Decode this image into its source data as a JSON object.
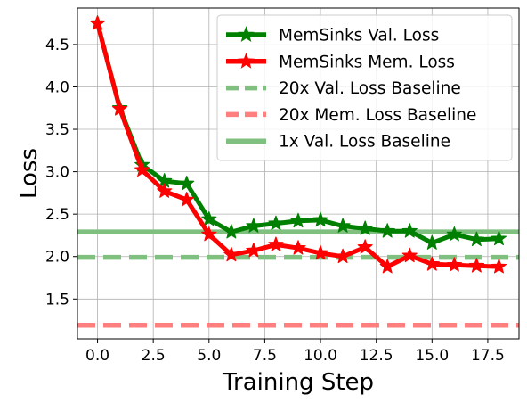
{
  "chart_data": {
    "type": "line",
    "xlabel": "Training Step",
    "ylabel": "Loss",
    "xlim": [
      -0.9,
      18.9
    ],
    "ylim": [
      1.03,
      4.93
    ],
    "x_ticks": [
      0.0,
      2.5,
      5.0,
      7.5,
      10.0,
      12.5,
      15.0,
      17.5
    ],
    "x_tick_labels": [
      "0.0",
      "2.5",
      "5.0",
      "7.5",
      "10.0",
      "12.5",
      "15.0",
      "17.5"
    ],
    "y_ticks": [
      1.5,
      2.0,
      2.5,
      3.0,
      3.5,
      4.0,
      4.5
    ],
    "y_tick_labels": [
      "1.5",
      "2.0",
      "2.5",
      "3.0",
      "3.5",
      "4.0",
      "4.5"
    ],
    "grid": true,
    "legend_position": "top-right",
    "x": [
      0,
      1,
      2,
      3,
      4,
      5,
      6,
      7,
      8,
      9,
      10,
      11,
      12,
      13,
      14,
      15,
      16,
      17,
      18
    ],
    "series": [
      {
        "name": "MemSinks Val. Loss",
        "color": "#008000",
        "marker": "star",
        "values": [
          4.75,
          3.75,
          3.08,
          2.89,
          2.86,
          2.44,
          2.29,
          2.36,
          2.39,
          2.42,
          2.43,
          2.36,
          2.33,
          2.3,
          2.3,
          2.16,
          2.26,
          2.2,
          2.21
        ]
      },
      {
        "name": "MemSinks Mem. Loss",
        "color": "#ff0000",
        "marker": "star",
        "values": [
          4.75,
          3.74,
          3.02,
          2.77,
          2.67,
          2.26,
          2.02,
          2.07,
          2.14,
          2.1,
          2.04,
          2.0,
          2.11,
          1.88,
          2.01,
          1.91,
          1.9,
          1.89,
          1.88
        ]
      }
    ],
    "baselines": [
      {
        "name": "20x Val. Loss Baseline",
        "value": 1.99,
        "color": "#7fbf7f",
        "style": "dashed"
      },
      {
        "name": "20x Mem. Loss Baseline",
        "value": 1.19,
        "color": "#ff7f7f",
        "style": "dashed"
      },
      {
        "name": "1x Val. Loss Baseline",
        "value": 2.29,
        "color": "#7fbf7f",
        "style": "solid"
      }
    ],
    "legend": [
      "MemSinks Val. Loss",
      "MemSinks Mem. Loss",
      "20x Val. Loss Baseline",
      "20x Mem. Loss Baseline",
      "1x Val. Loss Baseline"
    ]
  }
}
